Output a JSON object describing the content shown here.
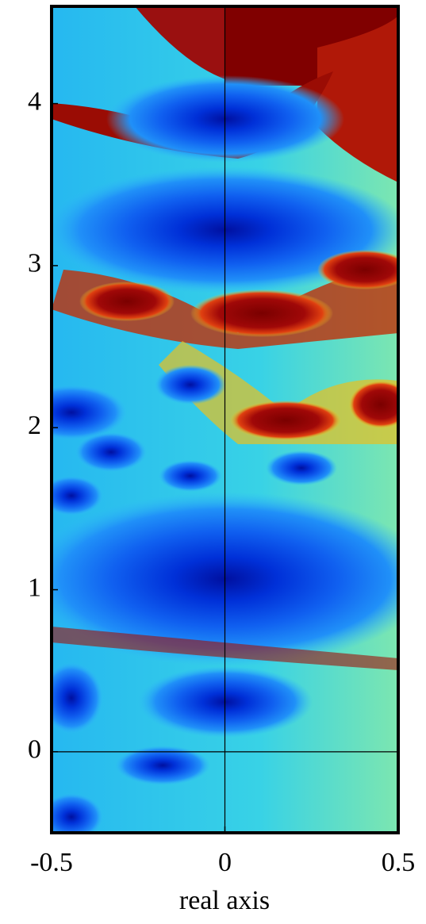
{
  "chart_data": {
    "type": "image",
    "xlabel": "real axis",
    "xlim": [
      -0.5,
      0.5
    ],
    "ylim": [
      -0.5,
      4.6
    ],
    "xticks": [
      -0.5,
      0,
      0.5
    ],
    "yticks": [
      0,
      1,
      2,
      3,
      4
    ]
  }
}
